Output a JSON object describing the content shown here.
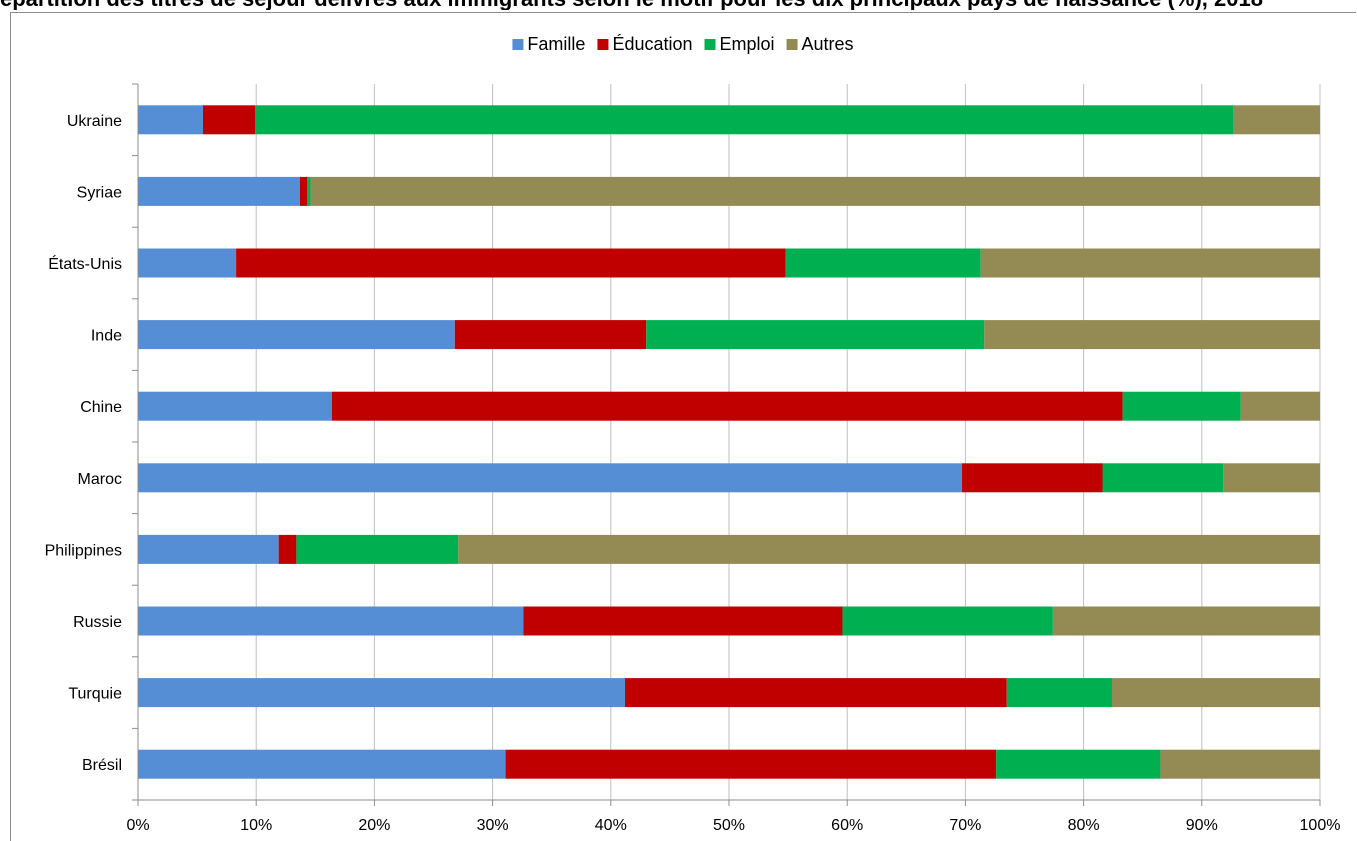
{
  "chart_data": {
    "type": "bar",
    "orientation": "horizontal",
    "stacked": "percent",
    "title": "",
    "xlabel": "",
    "ylabel": "",
    "xlim": [
      0,
      100
    ],
    "x_ticks": [
      "0%",
      "10%",
      "20%",
      "30%",
      "40%",
      "50%",
      "60%",
      "70%",
      "80%",
      "90%",
      "100%"
    ],
    "grid": "vertical",
    "legend_position": "top-center",
    "categories": [
      "Ukraine",
      "Syriae",
      "États-Unis",
      "Inde",
      "Chine",
      "Maroc",
      "Philippines",
      "Russie",
      "Turquie",
      "Brésil"
    ],
    "series": [
      {
        "name": "Famille",
        "color": "#558ED5",
        "values": [
          5.5,
          13.7,
          8.3,
          26.8,
          16.4,
          69.7,
          11.9,
          32.6,
          41.2,
          31.1
        ]
      },
      {
        "name": "Éducation",
        "color": "#C00000",
        "values": [
          4.4,
          0.6,
          46.5,
          16.2,
          66.9,
          11.9,
          1.5,
          27.0,
          32.3,
          41.5
        ]
      },
      {
        "name": "Emploi",
        "color": "#00B050",
        "values": [
          82.8,
          0.3,
          16.5,
          28.6,
          10.0,
          10.2,
          13.7,
          17.8,
          8.9,
          13.9
        ]
      },
      {
        "name": "Autres",
        "color": "#948A54",
        "values": [
          7.3,
          85.4,
          28.7,
          28.4,
          6.7,
          8.2,
          72.9,
          22.6,
          17.6,
          13.5
        ]
      }
    ]
  },
  "clipped_title": "épartition des titres de séjour délivrés aux immigrants selon le motif pour les dix principaux pays de naissance (%), 2018"
}
